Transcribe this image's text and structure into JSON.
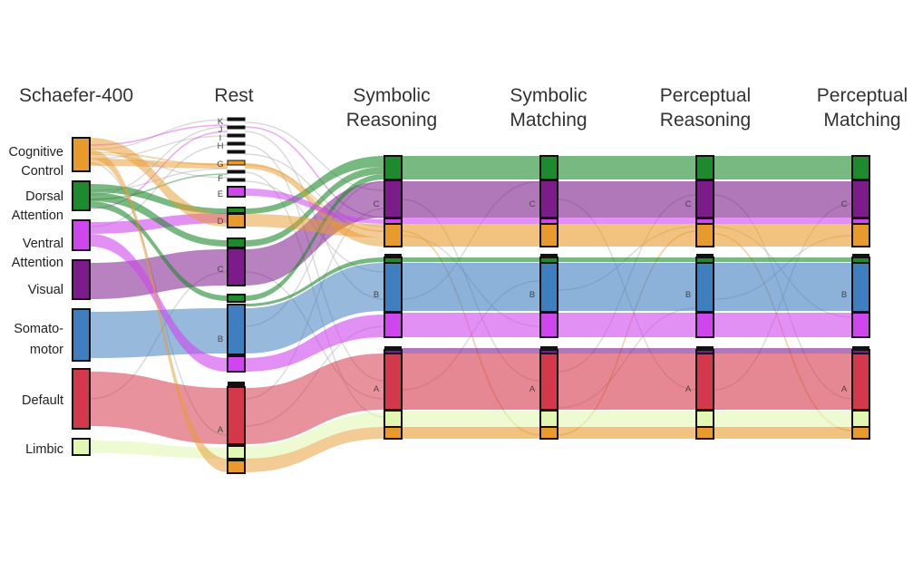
{
  "colors": {
    "cognitive_control": "#e89a2c",
    "dorsal_attention": "#1e8a2e",
    "ventral_attention": "#d046ee",
    "visual": "#7b1c8a",
    "somatomotor": "#3f7fbf",
    "default": "#d4394b",
    "limbic": "#e2f7b2",
    "node_stroke": "#111111",
    "ribbon_faint": "#bbbbbb"
  },
  "columns": [
    {
      "id": "schaefer",
      "title": [
        "Schaefer-400"
      ]
    },
    {
      "id": "rest",
      "title": [
        "Rest"
      ]
    },
    {
      "id": "symreason",
      "title": [
        "Symbolic",
        "Reasoning"
      ]
    },
    {
      "id": "symmatch",
      "title": [
        "Symbolic",
        "Matching"
      ]
    },
    {
      "id": "percreason",
      "title": [
        "Perceptual",
        "Reasoning"
      ]
    },
    {
      "id": "percmatch",
      "title": [
        "Perceptual",
        "Matching"
      ]
    }
  ],
  "networks": [
    {
      "id": "cognitive_control",
      "label": [
        "Cognitive",
        "Control"
      ]
    },
    {
      "id": "dorsal_attention",
      "label": [
        "Dorsal",
        "Attention"
      ]
    },
    {
      "id": "ventral_attention",
      "label": [
        "Ventral",
        "Attention"
      ]
    },
    {
      "id": "visual",
      "label": [
        "Visual"
      ]
    },
    {
      "id": "somatomotor",
      "label": [
        "Somato-",
        "motor"
      ]
    },
    {
      "id": "default",
      "label": [
        "Default"
      ]
    },
    {
      "id": "limbic",
      "label": [
        "Limbic"
      ]
    }
  ],
  "modules": {
    "rest": [
      "K",
      "J",
      "I",
      "H",
      "G",
      "F",
      "E",
      "D",
      "C",
      "B",
      "A"
    ],
    "tasks": [
      "C",
      "B",
      "A"
    ]
  }
}
